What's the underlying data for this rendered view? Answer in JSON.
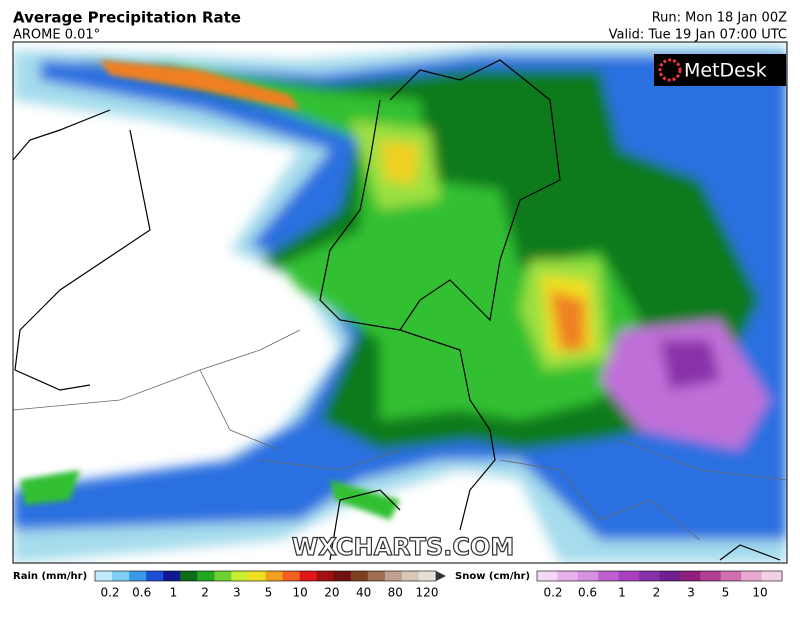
{
  "header": {
    "title": "Average Precipitation Rate",
    "subtitle": "AROME 0.01°",
    "run": "Run: Mon 18 Jan 00Z",
    "valid": "Valid: Tue 19 Jan 07:00 UTC"
  },
  "logo": "MetDesk",
  "watermark": "WXCHARTS.COM",
  "legend": {
    "rain": {
      "label": "Rain (mm/hr)",
      "ticks": [
        "0.2",
        "0.6",
        "1",
        "2",
        "3",
        "5",
        "10",
        "20",
        "40",
        "80",
        "120"
      ]
    },
    "snow": {
      "label": "Snow (cm/hr)",
      "ticks": [
        "0.2",
        "0.6",
        "1",
        "2",
        "3",
        "5",
        "10"
      ]
    }
  }
}
